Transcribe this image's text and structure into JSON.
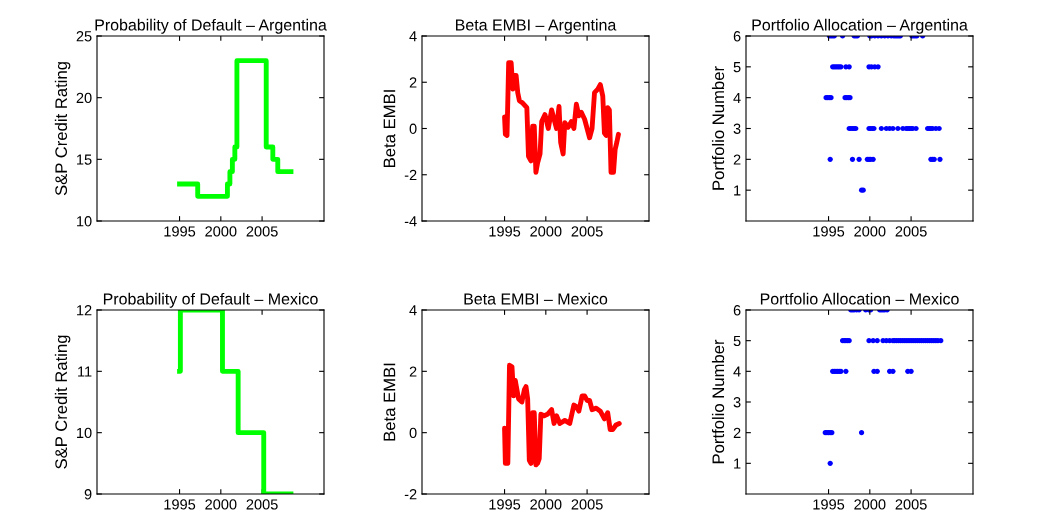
{
  "chart_data": [
    {
      "type": "step",
      "title": "Probability of Default – Argentina",
      "ylabel": "S&P Credit Rating",
      "color": "#00ff00",
      "xlim": [
        1985,
        2012.5
      ],
      "xticks": [
        1995,
        2000,
        2005
      ],
      "ylim": [
        10,
        25
      ],
      "yticks": [
        10,
        15,
        20,
        25
      ],
      "x": [
        1995,
        1997.2,
        2000.8,
        2001.1,
        2001.4,
        2001.7,
        2001.95,
        2005.5,
        2006.3,
        2006.9,
        2008.5
      ],
      "values": [
        13,
        12,
        13,
        14,
        15,
        16,
        23,
        16,
        15,
        14,
        14
      ]
    },
    {
      "type": "line",
      "title": "Beta EMBI – Argentina",
      "ylabel": "Beta EMBI",
      "color": "#ff0000",
      "xlim": [
        1985,
        2012.5
      ],
      "xticks": [
        1995,
        2000,
        2005
      ],
      "ylim": [
        -4,
        4
      ],
      "yticks": [
        -4,
        -2,
        0,
        2,
        4
      ],
      "x": [
        1995.0,
        1995.1,
        1995.3,
        1995.5,
        1995.8,
        1996.0,
        1996.2,
        1996.4,
        1996.6,
        1996.8,
        1997.2,
        1997.7,
        1997.9,
        1998.2,
        1998.4,
        1998.6,
        1998.8,
        1999.0,
        1999.3,
        1999.5,
        1999.9,
        2000.3,
        2000.7,
        2001.0,
        2001.3,
        2001.6,
        2001.8,
        2002.1,
        2002.3,
        2002.7,
        2003.1,
        2003.4,
        2003.7,
        2004.0,
        2004.3,
        2004.7,
        2005.0,
        2005.3,
        2005.6,
        2005.9,
        2006.3,
        2006.6,
        2006.9,
        2007.1,
        2007.3,
        2007.5,
        2007.7,
        2007.9,
        2008.2,
        2008.4,
        2008.6,
        2008.8
      ],
      "values": [
        0.5,
        -0.25,
        -0.3,
        2.85,
        2.85,
        1.7,
        2.3,
        2.3,
        1.55,
        1.2,
        1.1,
        0.9,
        -1.2,
        -1.4,
        0.1,
        0.1,
        -1.9,
        -1.5,
        -1.1,
        0.3,
        0.6,
        0,
        0.8,
        0.4,
        0,
        0.95,
        -0.6,
        -1.1,
        0.25,
        0.05,
        0.3,
        0,
        1.05,
        0.55,
        0.7,
        0.4,
        0,
        -0.4,
        0,
        1.55,
        1.7,
        1.9,
        1.4,
        -0.2,
        -0.3,
        0.9,
        0.8,
        -1.9,
        -1.9,
        -0.9,
        -0.6,
        -0.25
      ]
    },
    {
      "type": "scatter",
      "title": "Portfolio Allocation – Argentina",
      "ylabel": "Portfolio Number",
      "color": "#0000ff",
      "marker": "circle",
      "xlim": [
        1985,
        2012.5
      ],
      "xticks": [
        1995,
        2000,
        2005
      ],
      "ylim": [
        0,
        6
      ],
      "yticks": [
        1,
        2,
        3,
        4,
        5,
        6
      ],
      "x": [
        1995.1,
        1995.3,
        1995.5,
        1995.7,
        1996.7,
        1998.1,
        1998.3,
        1998.5,
        2000.0,
        2000.2,
        2000.6,
        2001.0,
        2001.4,
        2001.8,
        2002.2,
        2002.6,
        2002.9,
        2003.1,
        2003.3,
        2003.5,
        2003.7,
        2005.1,
        2005.3,
        2005.5,
        2005.7,
        2006.4,
        1995.5,
        1995.7,
        1995.9,
        1996.1,
        1996.3,
        1996.5,
        1997.1,
        1997.5,
        1999.9,
        2000.2,
        2000.6,
        2001.0,
        1994.7,
        1994.9,
        1995.1,
        1995.3,
        1997.0,
        1997.2,
        1997.4,
        1997.6,
        1997.5,
        1997.7,
        1997.9,
        1998.1,
        1998.3,
        1999.9,
        2000.1,
        2000.3,
        2000.5,
        2001.4,
        2002.0,
        2002.4,
        2002.8,
        2003.4,
        2004.0,
        2004.4,
        2004.6,
        2004.8,
        2005.0,
        2005.2,
        2005.6,
        2007.0,
        2007.2,
        2007.4,
        2007.6,
        2008.0,
        2008.4,
        1995.2,
        1997.9,
        1998.7,
        1999.7,
        1999.9,
        2000.1,
        2000.4,
        2007.4,
        2007.6,
        2007.8,
        2008.5,
        1999.0,
        1999.2
      ],
      "values": [
        6,
        6,
        6,
        6,
        6,
        6,
        6,
        6,
        6,
        6,
        6,
        6,
        6,
        6,
        6,
        6,
        6,
        6,
        6,
        6,
        6,
        6,
        6,
        6,
        6,
        6,
        5,
        5,
        5,
        5,
        5,
        5,
        5,
        5,
        5,
        5,
        5,
        5,
        4,
        4,
        4,
        4,
        4,
        4,
        4,
        4,
        3,
        3,
        3,
        3,
        3,
        3,
        3,
        3,
        3,
        3,
        3,
        3,
        3,
        3,
        3,
        3,
        3,
        3,
        3,
        3,
        3,
        3,
        3,
        3,
        3,
        3,
        3,
        2,
        2,
        2,
        2,
        2,
        2,
        2,
        2,
        2,
        2,
        2,
        1,
        1
      ]
    },
    {
      "type": "step",
      "title": "Probability of Default – Mexico",
      "ylabel": "S&P Credit Rating",
      "color": "#00ff00",
      "xlim": [
        1985,
        2012.5
      ],
      "xticks": [
        1995,
        2000,
        2005
      ],
      "ylim": [
        9,
        12
      ],
      "yticks": [
        9,
        10,
        11,
        12
      ],
      "x": [
        1995,
        1995.1,
        2000.2,
        2002.1,
        2005.2,
        2008.5
      ],
      "values": [
        11,
        12,
        11,
        10,
        9,
        9
      ]
    },
    {
      "type": "line",
      "title": "Beta EMBI – Mexico",
      "ylabel": "Beta EMBI",
      "color": "#ff0000",
      "xlim": [
        1985,
        2012.5
      ],
      "xticks": [
        1995,
        2000,
        2005
      ],
      "ylim": [
        -2,
        4
      ],
      "yticks": [
        -2,
        0,
        2,
        4
      ],
      "x": [
        1995.0,
        1995.1,
        1995.4,
        1995.6,
        1995.9,
        1996.1,
        1996.3,
        1996.5,
        1996.7,
        1997.1,
        1997.4,
        1997.6,
        1997.8,
        1998.0,
        1998.2,
        1998.4,
        1998.6,
        1998.8,
        1999.0,
        1999.2,
        1999.4,
        1999.8,
        2000.2,
        2000.7,
        2001.0,
        2001.3,
        2001.7,
        2002.3,
        2002.9,
        2003.4,
        2003.7,
        2004.0,
        2004.4,
        2004.7,
        2005.0,
        2005.3,
        2005.6,
        2006.1,
        2006.6,
        2007.1,
        2007.5,
        2007.8,
        2008.1,
        2008.5,
        2008.9
      ],
      "values": [
        0.15,
        -1.0,
        -1.0,
        2.2,
        2.15,
        1.2,
        1.7,
        1.4,
        1.1,
        1.0,
        1.4,
        1.5,
        1.1,
        -0.9,
        -1.0,
        0.65,
        0.65,
        -1.05,
        -1.0,
        -0.85,
        0.6,
        0.55,
        0.6,
        0.75,
        0.3,
        0.55,
        0.3,
        0.4,
        0.3,
        0.9,
        0.85,
        0.7,
        1.2,
        1.2,
        1.05,
        1.05,
        0.75,
        0.8,
        0.7,
        0.45,
        0.65,
        0.1,
        0.1,
        0.25,
        0.3
      ]
    },
    {
      "type": "scatter",
      "title": "Portfolio Allocation – Mexico",
      "ylabel": "Portfolio Number",
      "color": "#0000ff",
      "marker": "circle",
      "xlim": [
        1985,
        2012.5
      ],
      "xticks": [
        1995,
        2000,
        2005
      ],
      "ylim": [
        0,
        6
      ],
      "yticks": [
        1,
        2,
        3,
        4,
        5,
        6
      ],
      "x": [
        1997.7,
        1997.9,
        1998.1,
        1998.4,
        1998.7,
        1999.5,
        1999.9,
        2000.1,
        2001.2,
        2001.4,
        2001.6,
        2001.8,
        2002.1,
        1996.7,
        1996.9,
        1997.1,
        1997.3,
        1997.5,
        1999.9,
        2000.4,
        2000.9,
        2001.6,
        2002.0,
        2002.4,
        2002.8,
        2003.0,
        2003.25,
        2003.5,
        2003.75,
        2004.0,
        2004.25,
        2004.5,
        2004.75,
        2005.0,
        2005.25,
        2005.5,
        2005.75,
        2006.0,
        2006.25,
        2006.5,
        2006.75,
        2007.0,
        2007.25,
        2007.5,
        2007.75,
        2008.0,
        2008.25,
        2008.6,
        1995.5,
        1995.7,
        1995.9,
        1996.1,
        1996.3,
        1996.5,
        1997.1,
        2000.5,
        2000.9,
        2002.4,
        2002.8,
        2004.6,
        2005.0,
        1994.6,
        1994.8,
        1995.0,
        1995.2,
        1995.4,
        1999.0,
        1995.2
      ],
      "values": [
        6,
        6,
        6,
        6,
        6,
        6,
        6,
        6,
        6,
        6,
        6,
        6,
        6,
        5,
        5,
        5,
        5,
        5,
        5,
        5,
        5,
        5,
        5,
        5,
        5,
        5,
        5,
        5,
        5,
        5,
        5,
        5,
        5,
        5,
        5,
        5,
        5,
        5,
        5,
        5,
        5,
        5,
        5,
        5,
        5,
        5,
        5,
        5,
        4,
        4,
        4,
        4,
        4,
        4,
        4,
        4,
        4,
        4,
        4,
        4,
        4,
        2,
        2,
        2,
        2,
        2,
        2,
        1
      ]
    }
  ]
}
